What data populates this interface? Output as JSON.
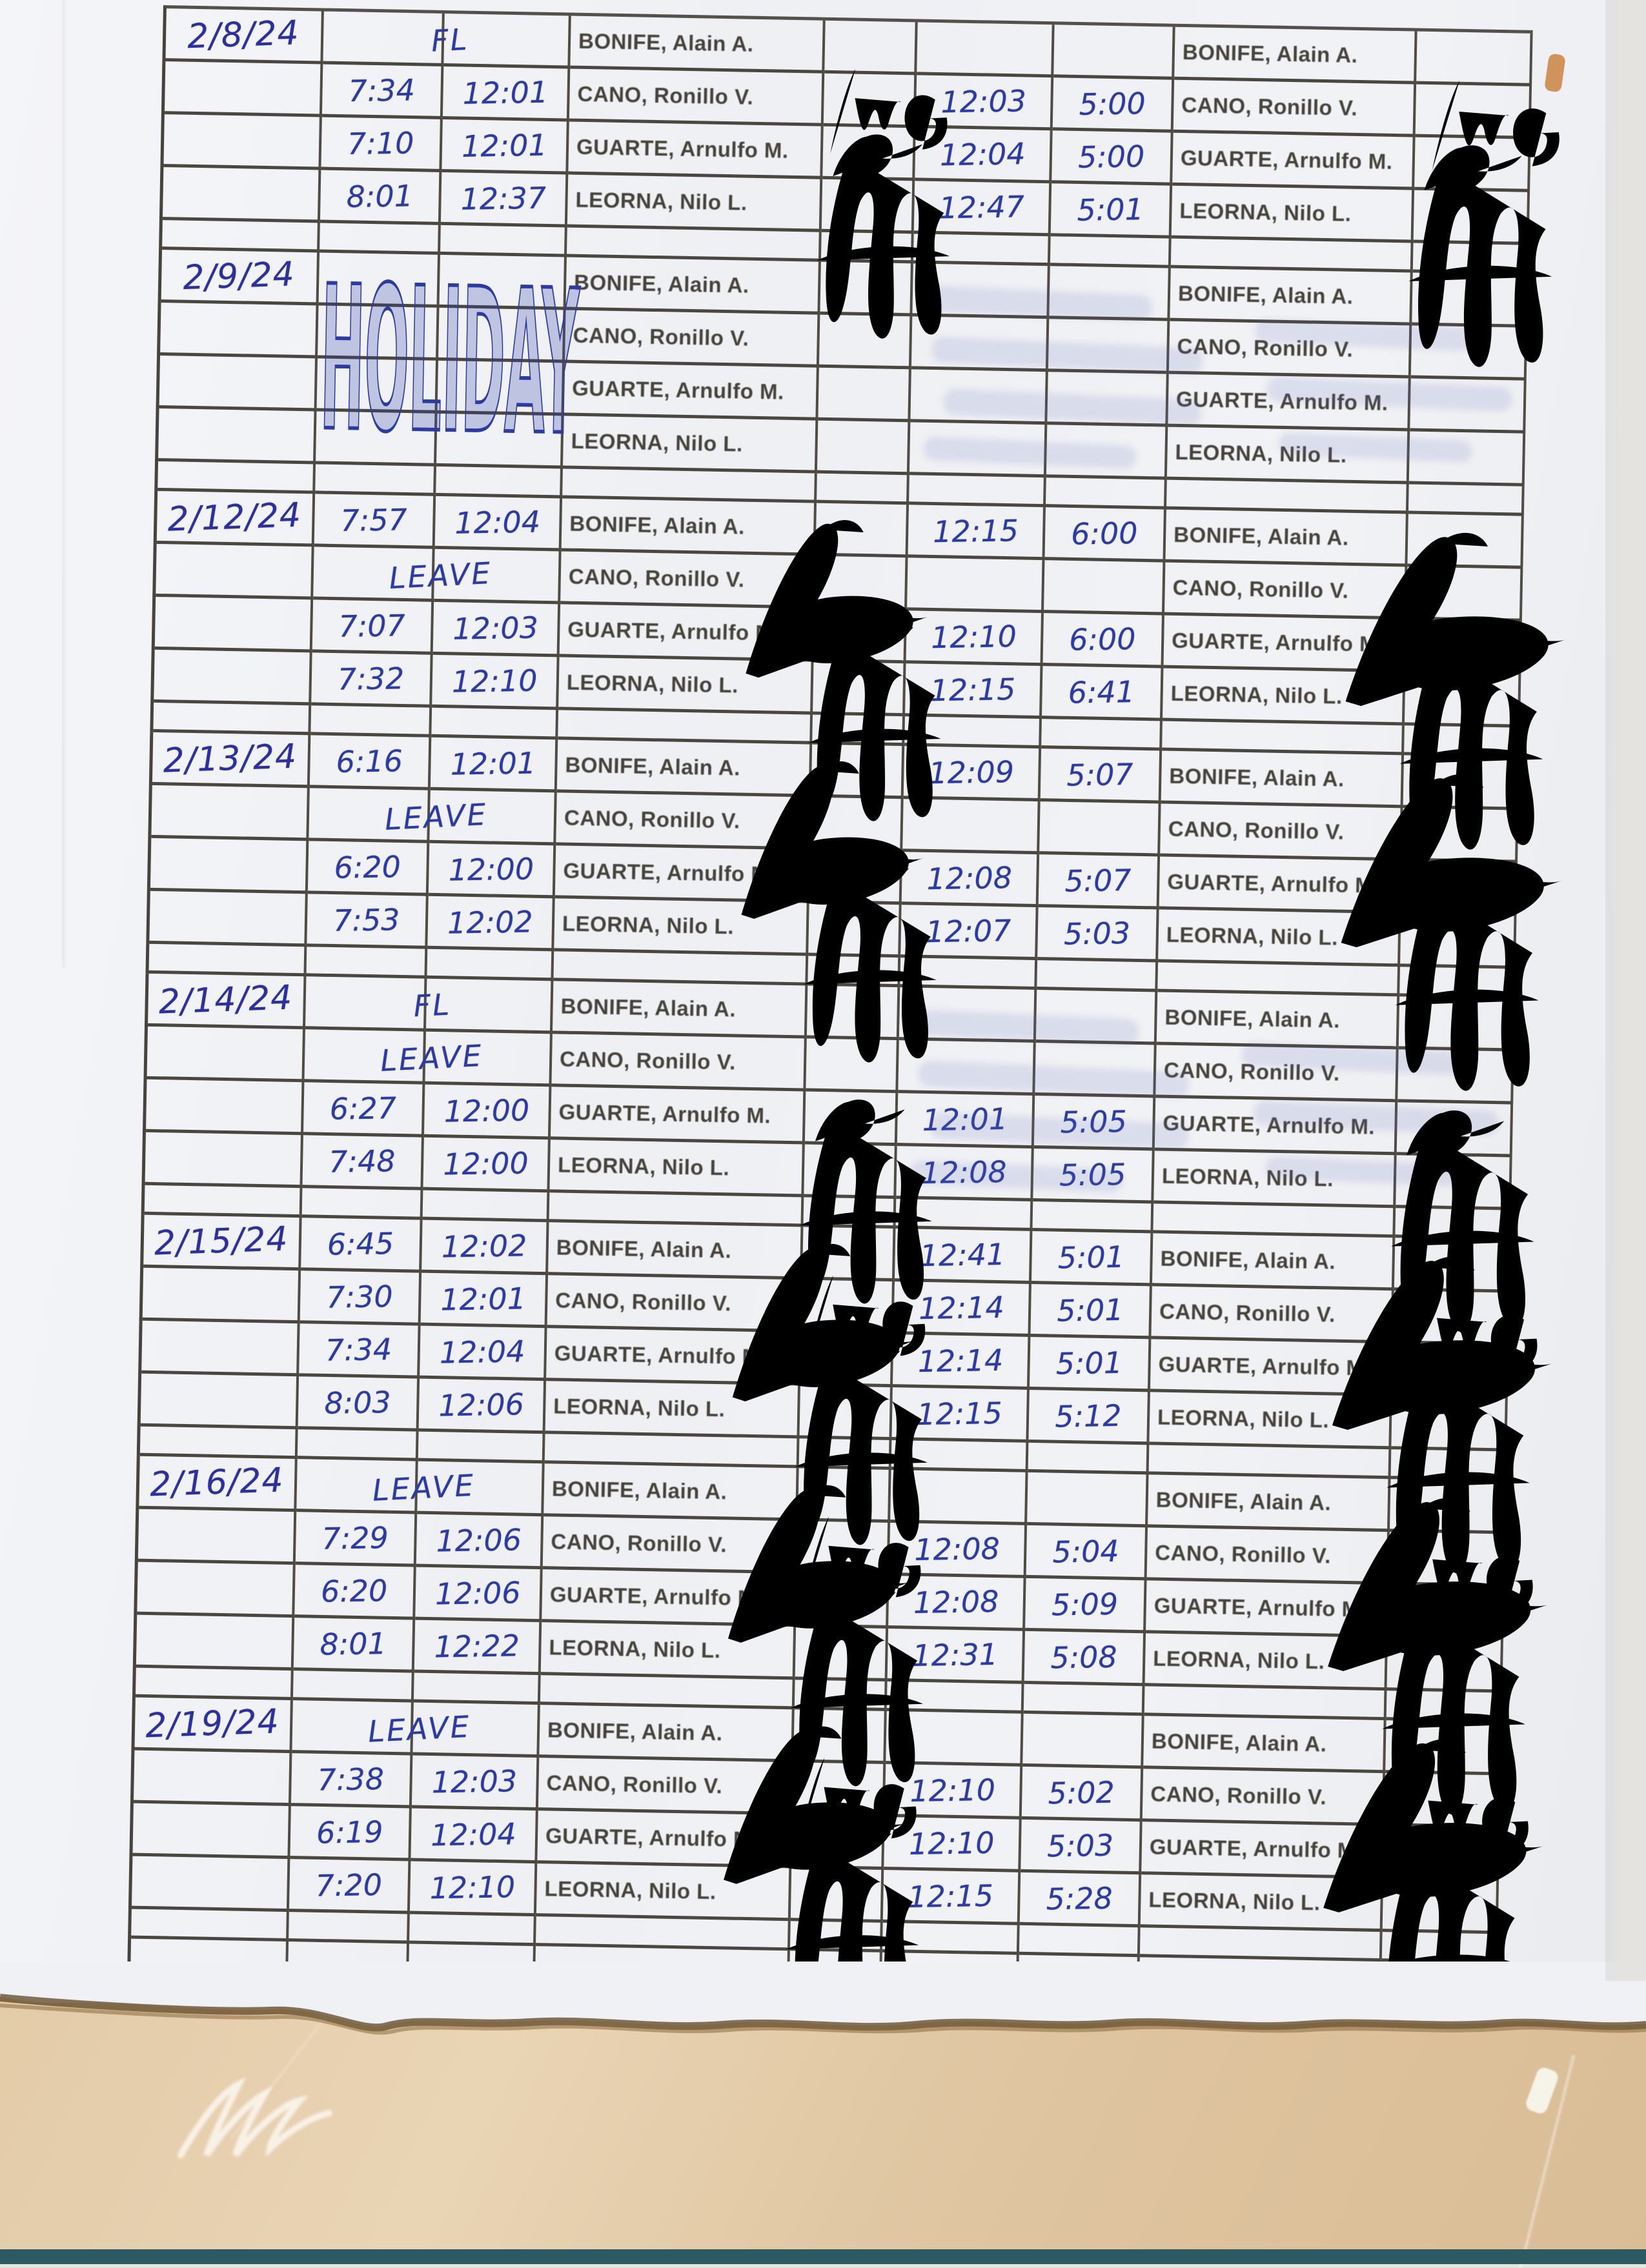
{
  "page": {
    "description": "Scanned handwritten daily time record sheet",
    "paper_color": "#f1f2f6",
    "grid_line_color": "#3a342b",
    "ink_color": "#2b3aa6",
    "print_color": "#47433b",
    "cardboard_color": "#e3cba8",
    "footer_strip_color": "#2d5a62"
  },
  "employees": [
    "BONIFE, Alain A.",
    "CANO, Ronillo V.",
    "GUARTE, Arnulfo M.",
    "LEORNA, Nilo L."
  ],
  "days": [
    {
      "date": "2/8/24",
      "notes": [
        {
          "row": 0,
          "kind": "fl",
          "text": "FL"
        }
      ],
      "rows": [
        {
          "am_in": "",
          "am_out": "",
          "pm_in": "",
          "pm_out": ""
        },
        {
          "am_in": "7:34",
          "am_out": "12:01",
          "pm_in": "12:03",
          "pm_out": "5:00"
        },
        {
          "am_in": "7:10",
          "am_out": "12:01",
          "pm_in": "12:04",
          "pm_out": "5:00"
        },
        {
          "am_in": "8:01",
          "am_out": "12:37",
          "pm_in": "12:47",
          "pm_out": "5:01"
        }
      ],
      "sigs": {
        "wg": true,
        "flourish": false,
        "guarte": true,
        "leorna": true
      },
      "ghost": false
    },
    {
      "date": "2/9/24",
      "notes": [
        {
          "row": 0,
          "kind": "holiday",
          "text": "HOLIDAY"
        }
      ],
      "rows": [
        {
          "am_in": "",
          "am_out": "",
          "pm_in": "",
          "pm_out": ""
        },
        {
          "am_in": "",
          "am_out": "",
          "pm_in": "",
          "pm_out": ""
        },
        {
          "am_in": "",
          "am_out": "",
          "pm_in": "",
          "pm_out": ""
        },
        {
          "am_in": "",
          "am_out": "",
          "pm_in": "",
          "pm_out": ""
        }
      ],
      "sigs": {
        "wg": false,
        "flourish": false,
        "guarte": false,
        "leorna": false
      },
      "ghost": true
    },
    {
      "date": "2/12/24",
      "notes": [
        {
          "row": 1,
          "kind": "leave",
          "text": "LEAVE"
        }
      ],
      "rows": [
        {
          "am_in": "7:57",
          "am_out": "12:04",
          "pm_in": "12:15",
          "pm_out": "6:00"
        },
        {
          "am_in": "",
          "am_out": "",
          "pm_in": "",
          "pm_out": ""
        },
        {
          "am_in": "7:07",
          "am_out": "12:03",
          "pm_in": "12:10",
          "pm_out": "6:00"
        },
        {
          "am_in": "7:32",
          "am_out": "12:10",
          "pm_in": "12:15",
          "pm_out": "6:41"
        }
      ],
      "sigs": {
        "wg": false,
        "flourish": true,
        "guarte": true,
        "leorna": true
      },
      "ghost": false
    },
    {
      "date": "2/13/24",
      "notes": [
        {
          "row": 1,
          "kind": "leave",
          "text": "LEAVE"
        }
      ],
      "rows": [
        {
          "am_in": "6:16",
          "am_out": "12:01",
          "pm_in": "12:09",
          "pm_out": "5:07"
        },
        {
          "am_in": "",
          "am_out": "",
          "pm_in": "",
          "pm_out": ""
        },
        {
          "am_in": "6:20",
          "am_out": "12:00",
          "pm_in": "12:08",
          "pm_out": "5:07"
        },
        {
          "am_in": "7:53",
          "am_out": "12:02",
          "pm_in": "12:07",
          "pm_out": "5:03"
        }
      ],
      "sigs": {
        "wg": false,
        "flourish": true,
        "guarte": true,
        "leorna": true
      },
      "ghost": false
    },
    {
      "date": "2/14/24",
      "notes": [
        {
          "row": 0,
          "kind": "fl",
          "text": "FL"
        },
        {
          "row": 1,
          "kind": "leave",
          "text": "LEAVE"
        }
      ],
      "rows": [
        {
          "am_in": "",
          "am_out": "",
          "pm_in": "",
          "pm_out": ""
        },
        {
          "am_in": "",
          "am_out": "",
          "pm_in": "",
          "pm_out": ""
        },
        {
          "am_in": "6:27",
          "am_out": "12:00",
          "pm_in": "12:01",
          "pm_out": "5:05"
        },
        {
          "am_in": "7:48",
          "am_out": "12:00",
          "pm_in": "12:08",
          "pm_out": "5:05"
        }
      ],
      "sigs": {
        "wg": false,
        "flourish": false,
        "guarte": true,
        "leorna": true
      },
      "ghost": true
    },
    {
      "date": "2/15/24",
      "notes": [],
      "rows": [
        {
          "am_in": "6:45",
          "am_out": "12:02",
          "pm_in": "12:41",
          "pm_out": "5:01"
        },
        {
          "am_in": "7:30",
          "am_out": "12:01",
          "pm_in": "12:14",
          "pm_out": "5:01"
        },
        {
          "am_in": "7:34",
          "am_out": "12:04",
          "pm_in": "12:14",
          "pm_out": "5:01"
        },
        {
          "am_in": "8:03",
          "am_out": "12:06",
          "pm_in": "12:15",
          "pm_out": "5:12"
        }
      ],
      "sigs": {
        "wg": true,
        "flourish": true,
        "guarte": true,
        "leorna": true
      },
      "ghost": false
    },
    {
      "date": "2/16/24",
      "notes": [
        {
          "row": 0,
          "kind": "leave",
          "text": "LEAVE"
        }
      ],
      "rows": [
        {
          "am_in": "",
          "am_out": "",
          "pm_in": "",
          "pm_out": ""
        },
        {
          "am_in": "7:29",
          "am_out": "12:06",
          "pm_in": "12:08",
          "pm_out": "5:04"
        },
        {
          "am_in": "6:20",
          "am_out": "12:06",
          "pm_in": "12:08",
          "pm_out": "5:09"
        },
        {
          "am_in": "8:01",
          "am_out": "12:22",
          "pm_in": "12:31",
          "pm_out": "5:08"
        }
      ],
      "sigs": {
        "wg": true,
        "flourish": true,
        "guarte": true,
        "leorna": true
      },
      "ghost": false
    },
    {
      "date": "2/19/24",
      "notes": [
        {
          "row": 0,
          "kind": "leave",
          "text": "LEAVE"
        }
      ],
      "rows": [
        {
          "am_in": "",
          "am_out": "",
          "pm_in": "",
          "pm_out": ""
        },
        {
          "am_in": "7:38",
          "am_out": "12:03",
          "pm_in": "12:10",
          "pm_out": "5:02"
        },
        {
          "am_in": "6:19",
          "am_out": "12:04",
          "pm_in": "12:10",
          "pm_out": "5:03"
        },
        {
          "am_in": "7:20",
          "am_out": "12:10",
          "pm_in": "12:15",
          "pm_out": "5:28"
        }
      ],
      "sigs": {
        "wg": true,
        "flourish": true,
        "guarte": true,
        "leorna": true
      },
      "ghost": false
    }
  ]
}
